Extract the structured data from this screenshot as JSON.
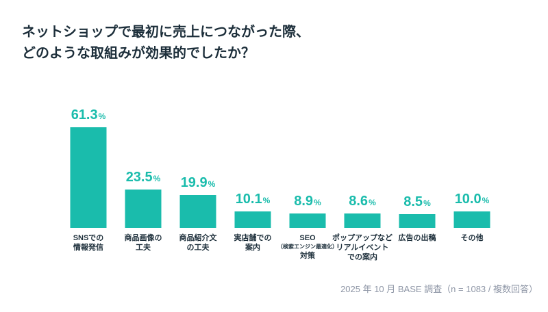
{
  "title": {
    "line1": "ネットショップで最初に売上につながった際、",
    "line2": "どのような取組みが効果的でしたか？"
  },
  "footer": {
    "source": "2025 年 10 月 BASE 調査（n = 1083 / 複数回答）"
  },
  "colors": {
    "bar": "#1ABCAC",
    "value_label": "#1ABCAC",
    "text": "#1C2E3A",
    "footer_text": "#8D95A5",
    "background": "#FFFFFF"
  },
  "chart_data": {
    "type": "bar",
    "title": "ネットショップで最初に売上につながった際、どのような取組みが効果的でしたか？",
    "unit": "%",
    "categories": [
      [
        "SNSでの",
        "情報発信"
      ],
      [
        "商品画像の",
        "工夫"
      ],
      [
        "商品紹介文",
        "の工夫"
      ],
      [
        "実店舗での",
        "案内"
      ],
      [
        "SEO",
        "（検索エンジン最適化）",
        "対策"
      ],
      [
        "ポップアップなど",
        "リアルイベント",
        "での案内"
      ],
      [
        "広告の出稿"
      ],
      [
        "その他"
      ]
    ],
    "values": [
      61.3,
      23.5,
      19.9,
      10.1,
      8.9,
      8.6,
      8.5,
      10.0
    ],
    "value_labels": [
      "61.3",
      "23.5",
      "19.9",
      "10.1",
      "8.9",
      "8.6",
      "8.5",
      "10.0"
    ],
    "ylim": [
      0,
      65
    ],
    "grid": false,
    "legend": false,
    "axes_shown": false,
    "source": "2025 年 10 月 BASE 調査（n = 1083 / 複数回答）"
  }
}
